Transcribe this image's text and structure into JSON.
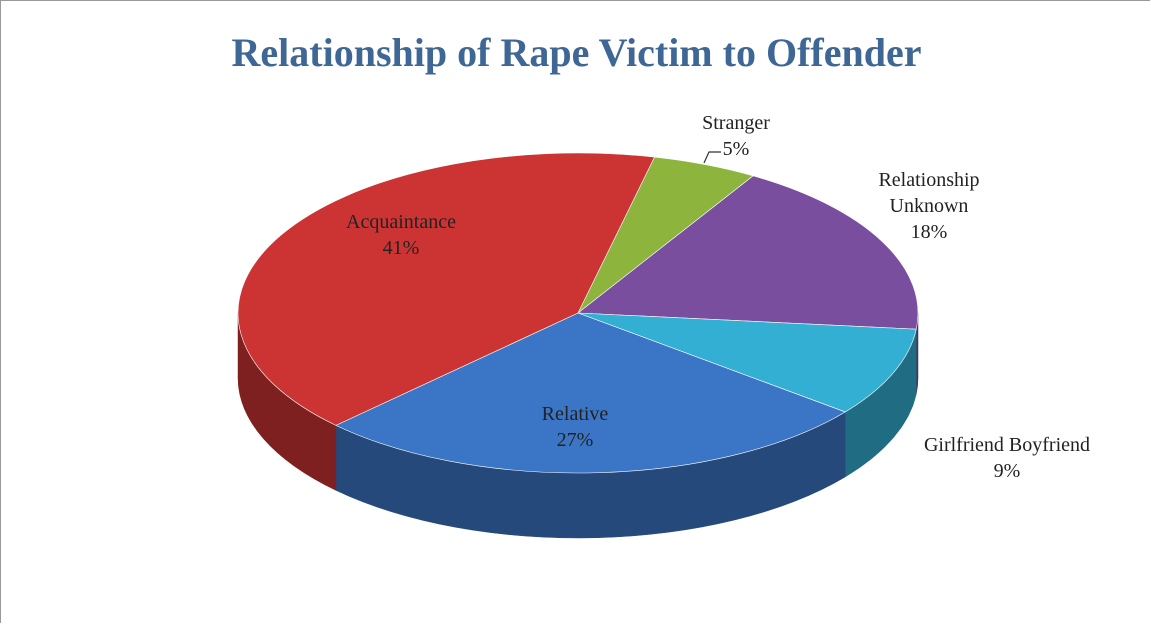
{
  "chart_data": {
    "type": "pie",
    "title": "Relationship of Rape Victim to Offender",
    "categories": [
      "Stranger",
      "Relationship Unknown",
      "Girlfriend Boyfriend",
      "Relative",
      "Acquaintance"
    ],
    "values": [
      5,
      18,
      9,
      27,
      41
    ],
    "value_labels": [
      "5%",
      "18%",
      "9%",
      "27%",
      "41%"
    ],
    "colors": [
      "#8db43c",
      "#7a4e9e",
      "#33afd4",
      "#3b76c6",
      "#cc3434"
    ]
  }
}
